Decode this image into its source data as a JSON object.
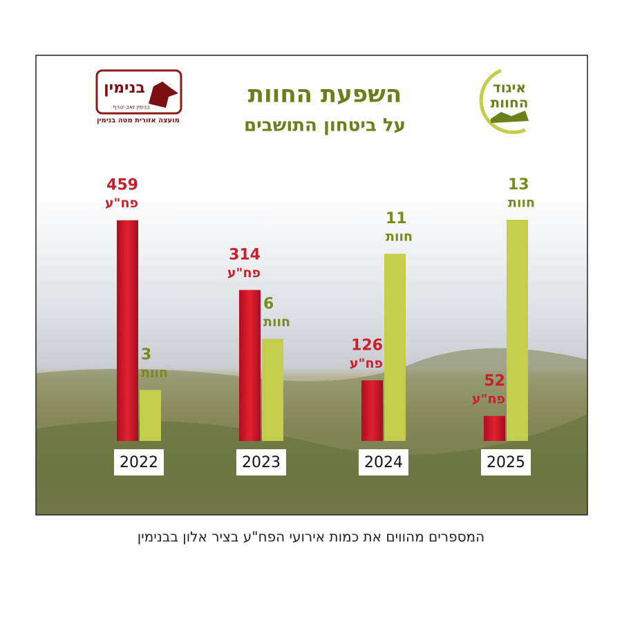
{
  "chart_data": {
    "type": "bar",
    "title": "השפעת החוות",
    "subtitle": "על ביטחון התושבים",
    "caption": "המספרים מהווים את כמות אירועי הפח\"ע בציר אלון בבנימין",
    "categories": [
      "2022",
      "2023",
      "2024",
      "2025"
    ],
    "series": [
      {
        "name": "פח\"ע",
        "color": "#c8142a",
        "values": [
          459,
          314,
          126,
          52
        ]
      },
      {
        "name": "חוות",
        "color": "#c4cd4c",
        "values": [
          3,
          6,
          11,
          13
        ],
        "axis": "y2"
      }
    ],
    "ylim": [
      0,
      460
    ],
    "y2lim": [
      0,
      13
    ]
  },
  "logos": {
    "left": {
      "name": "בנימין",
      "motto": "בנימין זאב יטרף",
      "org": "מועצה אזורית מטה בנימין"
    },
    "right": {
      "line1": "איגוד",
      "line2": "החוות"
    }
  }
}
